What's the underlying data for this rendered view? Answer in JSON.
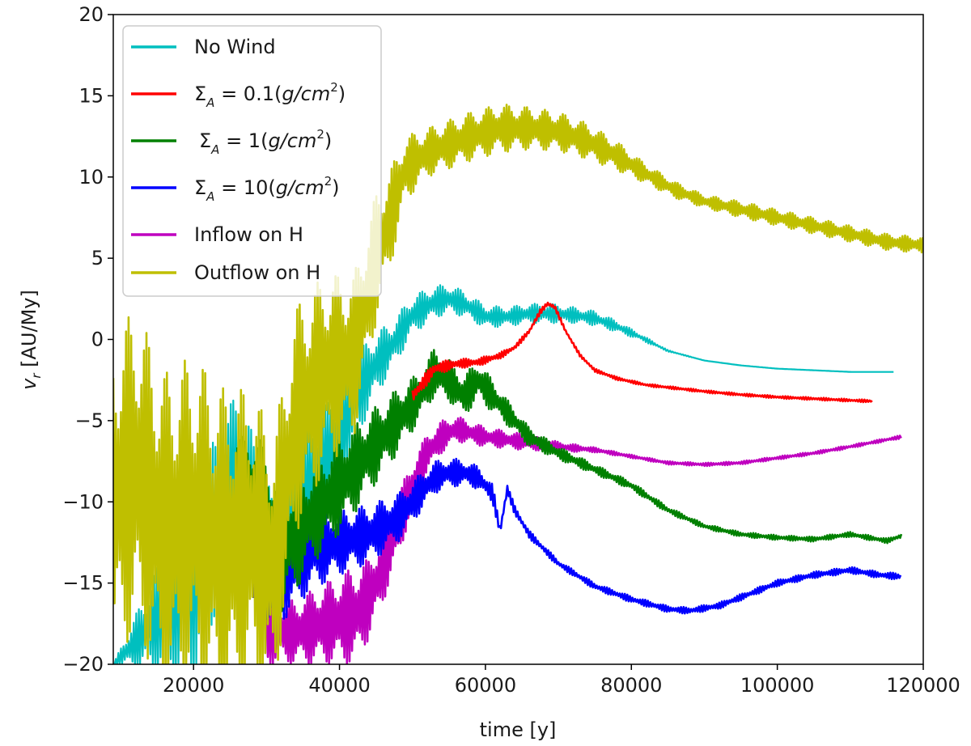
{
  "chart_data": {
    "type": "line",
    "title": "",
    "xlabel": "time [y]",
    "ylabel": "v_r [AU/My]",
    "xlim": [
      9000,
      120000
    ],
    "ylim": [
      -20,
      20
    ],
    "xticks": [
      20000,
      40000,
      60000,
      80000,
      100000,
      120000
    ],
    "xtick_labels": [
      "20000",
      "40000",
      "60000",
      "80000",
      "100000",
      "120000"
    ],
    "yticks": [
      -20,
      -15,
      -10,
      -5,
      0,
      5,
      10,
      15,
      20
    ],
    "ytick_labels": [
      "−20",
      "−15",
      "−10",
      "−5",
      "0",
      "5",
      "10",
      "15",
      "20"
    ],
    "grid": false,
    "legend_position": "top-left",
    "series": [
      {
        "name": "No Wind",
        "color": "#00bfbf",
        "x": [
          9000,
          20000,
          26000,
          29000,
          31000,
          36000,
          40000,
          43000,
          45000,
          47000,
          50000,
          53000,
          55000,
          57000,
          60000,
          63000,
          66000,
          69000,
          72000,
          75000,
          78000,
          81000,
          85000,
          90000,
          95000,
          100000,
          105000,
          110000,
          116000
        ],
        "values": [
          -20,
          -15,
          -8,
          -11,
          -14,
          -9,
          -6,
          -3,
          -1.5,
          -0.5,
          1.5,
          2.3,
          2.5,
          2.2,
          1.4,
          1.4,
          1.6,
          1.6,
          1.5,
          1.3,
          0.8,
          0.2,
          -0.7,
          -1.3,
          -1.6,
          -1.8,
          -1.9,
          -2.0,
          -2.0
        ],
        "amplitude": [
          0,
          6,
          5,
          4,
          4,
          4,
          3,
          2.5,
          2,
          1.5,
          1.2,
          1,
          0.9,
          0.8,
          0.7,
          0.6,
          0.6,
          0.6,
          0.5,
          0.45,
          0.35,
          0.2,
          0.05,
          0,
          0,
          0,
          0,
          0,
          0
        ]
      },
      {
        "name": "Σ_A = 0.1(g/cm^2)",
        "label_parts": [
          "Σ",
          "A",
          " = 0.1(",
          "g/cm",
          "2",
          ")"
        ],
        "color": "#ff0000",
        "x": [
          50000,
          53000,
          56000,
          59000,
          62000,
          64000,
          66000,
          67500,
          68500,
          69500,
          71000,
          73000,
          75000,
          78000,
          82000,
          86000,
          90000,
          95000,
          100000,
          105000,
          110000,
          113000
        ],
        "values": [
          -3.5,
          -1.8,
          -1.5,
          -1.4,
          -1.0,
          -0.5,
          0.5,
          1.7,
          2.2,
          2.0,
          0.5,
          -1.0,
          -1.9,
          -2.4,
          -2.8,
          -3.0,
          -3.2,
          -3.4,
          -3.55,
          -3.65,
          -3.75,
          -3.8
        ],
        "amplitude": [
          0.5,
          0.4,
          0.3,
          0.25,
          0.2,
          0.15,
          0.15,
          0.15,
          0.15,
          0.15,
          0.1,
          0.1,
          0.1,
          0.1,
          0.08,
          0.08,
          0.08,
          0.08,
          0.08,
          0.08,
          0.08,
          0.08
        ]
      },
      {
        "name": "Σ_A = 1(g/cm^2)",
        "label_parts": [
          "Σ",
          "A",
          " = 1(",
          "g/cm",
          "2",
          ")"
        ],
        "color": "#008000",
        "x": [
          26000,
          29000,
          32000,
          36000,
          40000,
          44000,
          48000,
          51000,
          53000,
          55000,
          57000,
          59000,
          61000,
          63000,
          66000,
          70000,
          75000,
          80000,
          85000,
          90000,
          95000,
          100000,
          105000,
          110000,
          115000,
          117000
        ],
        "values": [
          -8,
          -10,
          -13,
          -11,
          -9,
          -7,
          -5,
          -3.5,
          -2,
          -2.5,
          -3.5,
          -2.5,
          -3.5,
          -4.5,
          -6,
          -7,
          -8,
          -9,
          -10.5,
          -11.5,
          -12,
          -12.2,
          -12.3,
          -12,
          -12.4,
          -12.1
        ],
        "amplitude": [
          2,
          4,
          4,
          3,
          3,
          2.5,
          2,
          1.5,
          1.5,
          1.3,
          1.3,
          1.2,
          1,
          0.8,
          0.6,
          0.4,
          0.3,
          0.25,
          0.2,
          0.15,
          0.15,
          0.15,
          0.15,
          0.15,
          0.15,
          0.15
        ]
      },
      {
        "name": "Σ_A = 10(g/cm^2)",
        "label_parts": [
          "Σ",
          "A",
          " = 10(",
          "g/cm",
          "2",
          ")"
        ],
        "color": "#0000ff",
        "x": [
          28000,
          32000,
          36000,
          40000,
          44000,
          48000,
          51000,
          53000,
          55000,
          57000,
          59000,
          61000,
          62000,
          63000,
          64000,
          66000,
          70000,
          75000,
          80000,
          85000,
          88000,
          92000,
          96000,
          100000,
          105000,
          110000,
          114000,
          117000
        ],
        "values": [
          -14,
          -14.5,
          -13,
          -12.5,
          -12,
          -11,
          -9.5,
          -8.5,
          -8.2,
          -8.2,
          -8.5,
          -9.5,
          -11.8,
          -9.2,
          -10.5,
          -12,
          -13.8,
          -15.2,
          -16.0,
          -16.6,
          -16.7,
          -16.4,
          -15.7,
          -15,
          -14.5,
          -14.2,
          -14.5,
          -14.6
        ],
        "amplitude": [
          3,
          3,
          2.5,
          2,
          1.8,
          1.5,
          1.2,
          1,
          0.9,
          0.8,
          0.7,
          0.6,
          0.3,
          0.3,
          0.3,
          0.25,
          0.2,
          0.2,
          0.2,
          0.2,
          0.2,
          0.2,
          0.2,
          0.2,
          0.2,
          0.2,
          0.2,
          0.2
        ]
      },
      {
        "name": "Inflow on H",
        "color": "#bf00bf",
        "x": [
          30000,
          34000,
          38000,
          42000,
          44000,
          46000,
          48000,
          50000,
          52000,
          54000,
          56000,
          60000,
          65000,
          70000,
          75000,
          80000,
          85000,
          90000,
          95000,
          100000,
          105000,
          110000,
          117000
        ],
        "values": [
          -18,
          -18,
          -17.5,
          -17,
          -16,
          -14,
          -11.5,
          -9,
          -7,
          -6,
          -5.5,
          -6,
          -6.3,
          -6.6,
          -6.8,
          -7.2,
          -7.6,
          -7.7,
          -7.6,
          -7.3,
          -7.0,
          -6.6,
          -6.0
        ],
        "amplitude": [
          2,
          2,
          2.5,
          3,
          2.5,
          2.2,
          2,
          1.5,
          1.2,
          1,
          0.8,
          0.6,
          0.5,
          0.3,
          0.15,
          0.1,
          0.1,
          0.1,
          0.1,
          0.1,
          0.1,
          0.1,
          0.1
        ]
      },
      {
        "name": "Outflow on H",
        "color": "#bfbf00",
        "x": [
          9000,
          12000,
          16000,
          20000,
          24000,
          28000,
          31000,
          34000,
          38000,
          42000,
          45000,
          47000,
          49000,
          52000,
          55000,
          58000,
          62000,
          66000,
          70000,
          74000,
          78000,
          82000,
          86000,
          90000,
          95000,
          100000,
          105000,
          110000,
          115000,
          120000
        ],
        "values": [
          -10,
          -8,
          -12,
          -11,
          -13,
          -12,
          -14,
          -5,
          -2,
          -1,
          5,
          7.5,
          10.5,
          11.5,
          12,
          12.5,
          13,
          13,
          12.8,
          12.2,
          11.3,
          10.2,
          9.2,
          8.5,
          8.0,
          7.5,
          7.0,
          6.5,
          6.0,
          5.8
        ],
        "amplitude": [
          10,
          10,
          10,
          10,
          10,
          9,
          8,
          7,
          6,
          5,
          4,
          3,
          2,
          1.5,
          1.5,
          1.5,
          1.5,
          1.3,
          1.2,
          1.1,
          0.9,
          0.6,
          0.5,
          0.4,
          0.5,
          0.5,
          0.5,
          0.5,
          0.5,
          0.5
        ]
      }
    ]
  }
}
